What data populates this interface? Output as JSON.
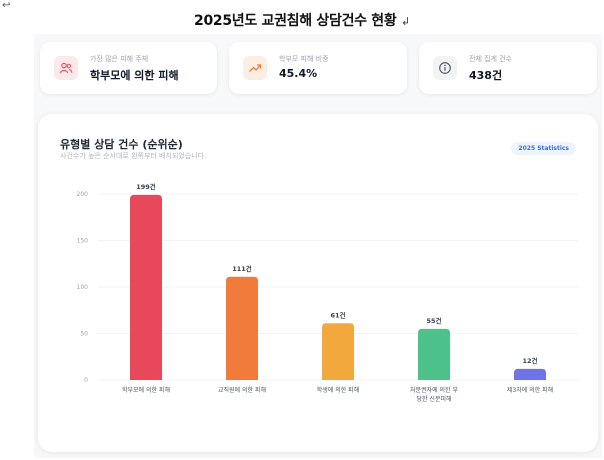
{
  "doc_title": "2025년도 교권침해 상담건수 현황",
  "stats": [
    {
      "label": "가장 많은 피해 주체",
      "value": "학부모에 의한 피해",
      "icon": "users-icon",
      "color": "#e8495a"
    },
    {
      "label": "학부모 피해 비중",
      "value": "45.4%",
      "icon": "trend-up-icon",
      "color": "#f07b3a"
    },
    {
      "label": "전체 집계 건수",
      "value": "438건",
      "icon": "info-icon",
      "color": "#6b7280"
    }
  ],
  "chart": {
    "title": "유형별 상담 건수 (순위순)",
    "subtitle": "사건수가 높은 순서대로 왼쪽부터 배치되었습니다.",
    "badge": "2025 Statistics"
  },
  "chart_data": {
    "type": "bar",
    "title": "유형별 상담 건수 (순위순)",
    "categories": [
      "학부모에 의한 피해",
      "교직원에 의한 피해",
      "학생에 의한 피해",
      "처분권자에 의한 부당한 신분피해",
      "제3자에 의한 피해"
    ],
    "category_lines": [
      [
        "학부모에 의한 피해"
      ],
      [
        "교직원에 의한 피해"
      ],
      [
        "학생에 의한 피해"
      ],
      [
        "처분권자에 의한 부",
        "당한 신분피해"
      ],
      [
        "제3자에 의한 피해"
      ]
    ],
    "values": [
      199,
      111,
      61,
      55,
      12
    ],
    "data_labels": [
      "199건",
      "111건",
      "61건",
      "55건",
      "12건"
    ],
    "colors": [
      "#e8495a",
      "#f07b3a",
      "#f2a83c",
      "#4cc18a",
      "#6e73e6"
    ],
    "yticks": [
      0,
      50,
      100,
      150,
      200
    ],
    "ylim": [
      0,
      200
    ],
    "grid": true,
    "xlabel": "",
    "ylabel": ""
  }
}
